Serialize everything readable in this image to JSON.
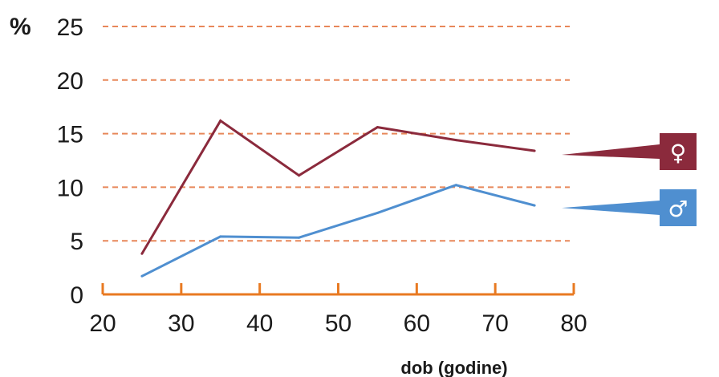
{
  "chart_data": {
    "type": "line",
    "ylabel": "%",
    "xlabel": "dob (godine)",
    "xlim": [
      20,
      80
    ],
    "ylim": [
      0,
      25
    ],
    "x_ticks": [
      20,
      30,
      40,
      50,
      60,
      70,
      80
    ],
    "y_ticks": [
      0,
      5,
      10,
      15,
      20,
      25
    ],
    "grid": "horizontal dashed",
    "x": [
      25,
      35,
      45,
      55,
      65,
      75
    ],
    "series": [
      {
        "name": "♀",
        "color": "#8b2a3c",
        "values": [
          3.8,
          16.2,
          11.1,
          15.6,
          14.4,
          13.4
        ]
      },
      {
        "name": "♂",
        "color": "#4f8fd0",
        "values": [
          1.7,
          5.4,
          5.3,
          7.6,
          10.2,
          8.3
        ]
      }
    ],
    "legend_placement": "right",
    "axis_color": "#e87a22",
    "grid_color": "#e8875a"
  }
}
